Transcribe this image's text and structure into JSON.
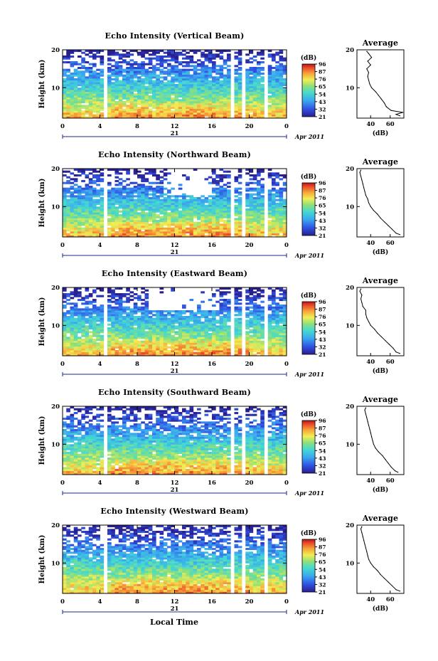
{
  "figure": {
    "x_label": "Local Time",
    "date_label": "Apr 2011",
    "day_label": "21",
    "colorbar_unit": "(dB)",
    "profile_unit": "(dB)",
    "profile_title": "Average",
    "y_label": "Height (km)"
  },
  "chart_data": [
    {
      "type": "heatmap",
      "title": "Echo Intensity (Vertical Beam)",
      "xlabel": "Local Time",
      "ylabel": "Height (km)",
      "xlim": [
        0,
        24
      ],
      "ylim": [
        2,
        20
      ],
      "x_ticks": [
        "0",
        "4",
        "8",
        "12",
        "16",
        "20",
        "0"
      ],
      "y_ticks": [
        "10",
        "20"
      ],
      "colorbar": {
        "label": "(dB)",
        "min": 21,
        "max": 96,
        "ticks": [
          "96",
          "87",
          "76",
          "65",
          "54",
          "43",
          "32",
          "21"
        ]
      },
      "profile": {
        "title": "Average",
        "xlabel": "(dB)",
        "x_ticks": [
          "40",
          "60"
        ],
        "y_ticks": [
          "10",
          "20"
        ],
        "ylim": [
          2,
          20
        ],
        "points": [
          [
            70,
            2.6
          ],
          [
            66,
            3
          ],
          [
            73,
            3.5
          ],
          [
            61,
            4
          ],
          [
            56,
            5
          ],
          [
            54,
            6
          ],
          [
            51,
            7
          ],
          [
            48,
            8
          ],
          [
            45,
            9
          ],
          [
            41,
            10
          ],
          [
            39,
            11
          ],
          [
            38,
            12
          ],
          [
            37,
            13
          ],
          [
            38,
            14
          ],
          [
            36,
            15
          ],
          [
            40,
            16
          ],
          [
            37,
            17
          ],
          [
            41,
            18
          ],
          [
            38,
            19
          ],
          [
            36,
            19.6
          ]
        ]
      }
    },
    {
      "type": "heatmap",
      "title": "Echo Intensity (Northward Beam)",
      "xlabel": "Local Time",
      "ylabel": "Height (km)",
      "xlim": [
        0,
        24
      ],
      "ylim": [
        2,
        20
      ],
      "x_ticks": [
        "0",
        "4",
        "8",
        "12",
        "16",
        "20",
        "0"
      ],
      "y_ticks": [
        "10",
        "20"
      ],
      "colorbar": {
        "label": "(dB)",
        "min": 21,
        "max": 96,
        "ticks": [
          "96",
          "87",
          "76",
          "65",
          "54",
          "43",
          "32",
          "21"
        ]
      },
      "profile": {
        "title": "Average",
        "xlabel": "(dB)",
        "x_ticks": [
          "40",
          "60"
        ],
        "y_ticks": [
          "10",
          "20"
        ],
        "ylim": [
          2,
          20
        ],
        "points": [
          [
            70,
            2.6
          ],
          [
            66,
            3
          ],
          [
            62,
            4
          ],
          [
            58,
            5
          ],
          [
            54,
            6
          ],
          [
            50,
            7
          ],
          [
            47,
            8
          ],
          [
            43,
            9
          ],
          [
            40,
            10
          ],
          [
            38,
            11
          ],
          [
            37,
            12
          ],
          [
            35,
            13
          ],
          [
            34,
            14
          ],
          [
            33,
            15
          ],
          [
            32,
            16
          ],
          [
            31,
            17
          ],
          [
            30,
            18
          ],
          [
            29,
            19
          ],
          [
            30,
            19.6
          ]
        ]
      }
    },
    {
      "type": "heatmap",
      "title": "Echo Intensity (Eastward Beam)",
      "xlabel": "Local Time",
      "ylabel": "Height (km)",
      "xlim": [
        0,
        24
      ],
      "ylim": [
        2,
        20
      ],
      "x_ticks": [
        "0",
        "4",
        "8",
        "12",
        "16",
        "20",
        "0"
      ],
      "y_ticks": [
        "10",
        "20"
      ],
      "colorbar": {
        "label": "(dB)",
        "min": 21,
        "max": 96,
        "ticks": [
          "96",
          "87",
          "76",
          "65",
          "54",
          "43",
          "32",
          "21"
        ]
      },
      "profile": {
        "title": "Average",
        "xlabel": "(dB)",
        "x_ticks": [
          "40",
          "60"
        ],
        "y_ticks": [
          "10",
          "20"
        ],
        "ylim": [
          2,
          20
        ],
        "points": [
          [
            70,
            2.6
          ],
          [
            66,
            3
          ],
          [
            63,
            4
          ],
          [
            59,
            5
          ],
          [
            55,
            6
          ],
          [
            51,
            7
          ],
          [
            47,
            8
          ],
          [
            44,
            9
          ],
          [
            40,
            10
          ],
          [
            38,
            11
          ],
          [
            36,
            12
          ],
          [
            35,
            13
          ],
          [
            35,
            14
          ],
          [
            32,
            15
          ],
          [
            31,
            16
          ],
          [
            30,
            17
          ],
          [
            31,
            18
          ],
          [
            29,
            19
          ],
          [
            30,
            19.6
          ]
        ]
      }
    },
    {
      "type": "heatmap",
      "title": "Echo Intensity (Southward Beam)",
      "xlabel": "Local Time",
      "ylabel": "Height (km)",
      "xlim": [
        0,
        24
      ],
      "ylim": [
        2,
        20
      ],
      "x_ticks": [
        "0",
        "4",
        "8",
        "12",
        "16",
        "20",
        "0"
      ],
      "y_ticks": [
        "10",
        "20"
      ],
      "colorbar": {
        "label": "(dB)",
        "min": 21,
        "max": 96,
        "ticks": [
          "96",
          "87",
          "76",
          "65",
          "54",
          "43",
          "32",
          "21"
        ]
      },
      "profile": {
        "title": "Average",
        "xlabel": "(dB)",
        "x_ticks": [
          "40",
          "60"
        ],
        "y_ticks": [
          "10",
          "20"
        ],
        "ylim": [
          2,
          20
        ],
        "points": [
          [
            68,
            2.6
          ],
          [
            65,
            3
          ],
          [
            61,
            4
          ],
          [
            58,
            5
          ],
          [
            55,
            6
          ],
          [
            52,
            7
          ],
          [
            48,
            8
          ],
          [
            45,
            9
          ],
          [
            43,
            10
          ],
          [
            42,
            11
          ],
          [
            41,
            12
          ],
          [
            40,
            13
          ],
          [
            39,
            14
          ],
          [
            38,
            15
          ],
          [
            37,
            16
          ],
          [
            36,
            17
          ],
          [
            35,
            18
          ],
          [
            34,
            19
          ],
          [
            35,
            19.6
          ]
        ]
      }
    },
    {
      "type": "heatmap",
      "title": "Echo Intensity (Westward Beam)",
      "xlabel": "Local Time",
      "ylabel": "Height (km)",
      "xlim": [
        0,
        24
      ],
      "ylim": [
        2,
        20
      ],
      "x_ticks": [
        "0",
        "4",
        "8",
        "12",
        "16",
        "20",
        "0"
      ],
      "y_ticks": [
        "10",
        "20"
      ],
      "colorbar": {
        "label": "(dB)",
        "min": 21,
        "max": 96,
        "ticks": [
          "96",
          "87",
          "76",
          "65",
          "54",
          "43",
          "32",
          "21"
        ]
      },
      "profile": {
        "title": "Average",
        "xlabel": "(dB)",
        "x_ticks": [
          "40",
          "60"
        ],
        "y_ticks": [
          "10",
          "20"
        ],
        "ylim": [
          2,
          20
        ],
        "points": [
          [
            70,
            2.6
          ],
          [
            66,
            3
          ],
          [
            62,
            4
          ],
          [
            58,
            5
          ],
          [
            54,
            6
          ],
          [
            50,
            7
          ],
          [
            47,
            8
          ],
          [
            43,
            9
          ],
          [
            40,
            10
          ],
          [
            38,
            11
          ],
          [
            37,
            12
          ],
          [
            36,
            13
          ],
          [
            35,
            14
          ],
          [
            34,
            15
          ],
          [
            33,
            16
          ],
          [
            32,
            17
          ],
          [
            31,
            18
          ],
          [
            30,
            19
          ],
          [
            31,
            19.6
          ]
        ]
      }
    }
  ]
}
